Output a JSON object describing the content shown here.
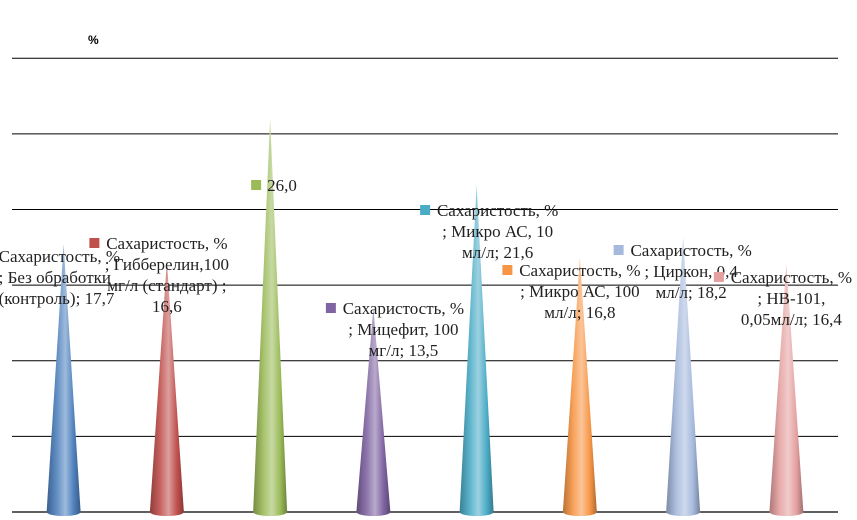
{
  "chart_data": {
    "type": "bar",
    "shape": "cone",
    "ylabel": "%",
    "ylim": [
      0,
      32
    ],
    "grid": true,
    "categories": [
      "Без обработки (контроль)",
      "Гибберелин,100 мг/л (стандарт)",
      "",
      "Мицефит, 100 мг/л",
      "Микро АС, 10 мл/л",
      "Микро АС, 100 мл/л",
      "Циркон, 0,4 мл/л",
      "НВ-101, 0,05мл/л"
    ],
    "values": [
      17.7,
      16.6,
      26.0,
      13.5,
      21.6,
      16.8,
      18.2,
      16.4
    ],
    "colors": [
      "#4f81bd",
      "#c0504d",
      "#9bbb59",
      "#8064a2",
      "#4bacc6",
      "#f79646",
      "#a5b9dc",
      "#e5a0a0"
    ],
    "data_labels": [
      [
        "Сахаристость, %",
        "; Без обработки",
        "(контроль); 17,7"
      ],
      [
        "Сахаристость, %",
        "; Гибберелин,100",
        "мг/л (стандарт) ;",
        "16,6"
      ],
      [
        "26,0"
      ],
      [
        "Сахаристость, %",
        "; Мицефит, 100",
        "мг/л; 13,5"
      ],
      [
        "Сахаристость, %",
        "; Микро АС, 10",
        "мл/л; 21,6"
      ],
      [
        "Сахаристость, %",
        "; Микро АС, 100",
        "мл/л; 16,8"
      ],
      [
        "Сахаристость, %",
        "; Циркон, 0,4",
        "мл/л; 18,2"
      ],
      [
        "Сахаристость, %",
        "; НВ-101,",
        "0,05мл/л; 16,4"
      ]
    ]
  }
}
